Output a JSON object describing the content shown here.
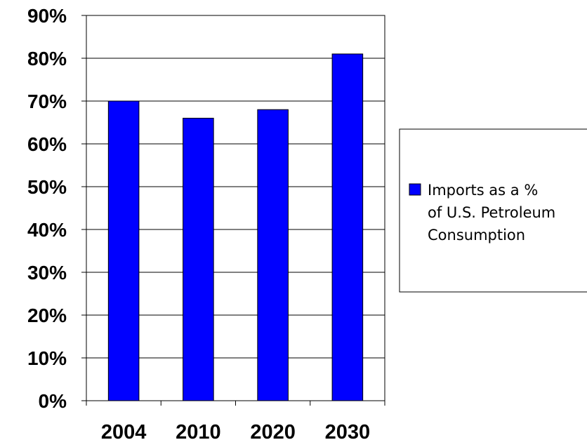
{
  "chart_data": {
    "type": "bar",
    "categories": [
      "2004",
      "2010",
      "2020",
      "2030"
    ],
    "series": [
      {
        "name": "Imports as a % of U.S. Petroleum Consumption",
        "values": [
          70,
          66,
          68,
          81
        ]
      }
    ],
    "ylim": [
      0,
      90
    ],
    "y_ticks": [
      "0%",
      "10%",
      "20%",
      "30%",
      "40%",
      "50%",
      "60%",
      "70%",
      "80%",
      "90%"
    ],
    "grid": true,
    "legend_position": "right",
    "bar_color": "#0000FF",
    "legend_lines": [
      "Imports as a %",
      "of U.S. Petroleum",
      "Consumption"
    ]
  }
}
